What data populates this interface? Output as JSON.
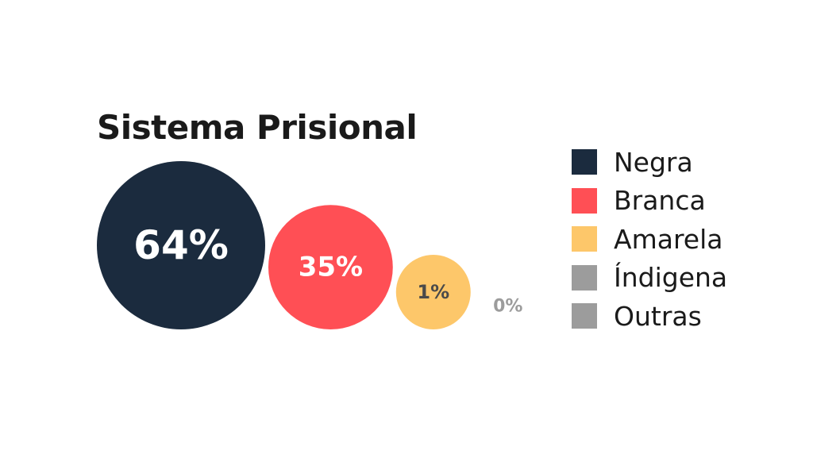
{
  "chart_data": {
    "type": "bubble",
    "title": "Sistema Prisional",
    "categories": [
      "Negra",
      "Branca",
      "Amarela",
      "Índigena",
      "Outras"
    ],
    "values": [
      64,
      35,
      1,
      0,
      0
    ],
    "value_labels": [
      "64%",
      "35%",
      "1%",
      "0%",
      ""
    ],
    "colors": [
      "#1b2b3e",
      "#ff4f55",
      "#fdc76a",
      "#9c9c9c",
      "#9c9c9c"
    ],
    "label_colors": [
      "#ffffff",
      "#ffffff",
      "#4a4a4a",
      "#9c9c9c",
      "#9c9c9c"
    ],
    "legend": {
      "placement": "right",
      "items": [
        {
          "label": "Negra",
          "color": "#1b2b3e"
        },
        {
          "label": "Branca",
          "color": "#ff4f55"
        },
        {
          "label": "Amarela",
          "color": "#fdc76a"
        },
        {
          "label": "Índigena",
          "color": "#9c9c9c"
        },
        {
          "label": "Outras",
          "color": "#9c9c9c"
        }
      ]
    }
  }
}
